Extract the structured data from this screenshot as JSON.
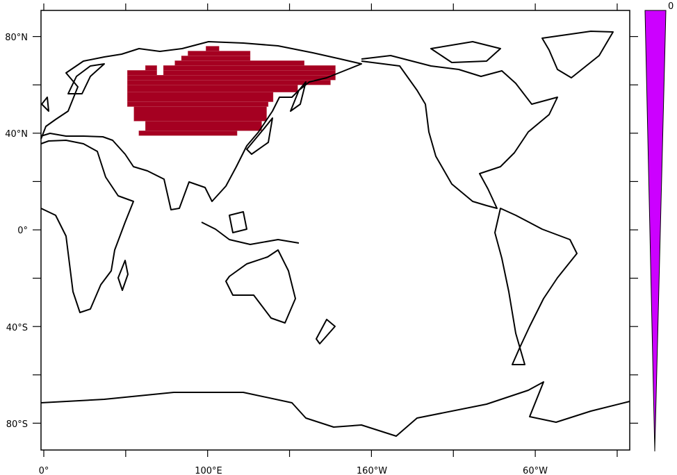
{
  "map": {
    "projection": "cylindrical-equidistant",
    "center_longitude": 180,
    "lon_tick_labels": [
      "0°",
      "100°E",
      "160°W",
      "60°W"
    ],
    "lat_tick_labels": [
      "80°N",
      "40°N",
      "0°",
      "40°S",
      "80°S"
    ],
    "shaded_region": {
      "color": "#A50021",
      "description_value": "grid cells over northern Eurasia"
    }
  },
  "colorbar": {
    "color": "#CC00FF",
    "labels": [
      "0"
    ]
  }
}
